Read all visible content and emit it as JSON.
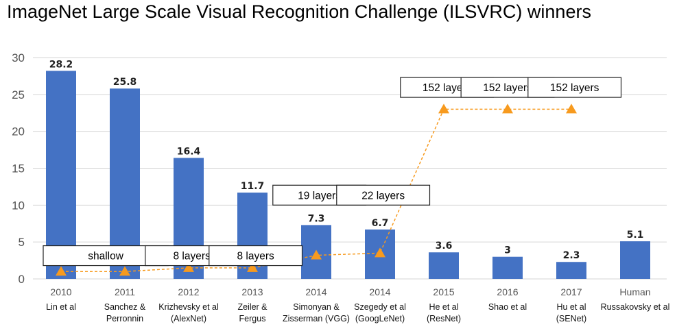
{
  "chart_data": {
    "type": "bar",
    "title": "ImageNet Large Scale Visual Recognition Challenge (ILSVRC) winners",
    "ylim": [
      0,
      30
    ],
    "yticks": [
      0,
      5,
      10,
      15,
      20,
      25,
      30
    ],
    "grid": true,
    "categories": [
      "2010",
      "2011",
      "2012",
      "2013",
      "2014",
      "2014",
      "2015",
      "2016",
      "2017",
      "Human"
    ],
    "authors": [
      [
        "Lin et al"
      ],
      [
        "Sanchez &",
        "Perronnin"
      ],
      [
        "Krizhevsky et al",
        "(AlexNet)"
      ],
      [
        "Zeiler &",
        "Fergus"
      ],
      [
        "Simonyan &",
        "Zisserman (VGG)"
      ],
      [
        "Szegedy et al",
        "(GoogLeNet)"
      ],
      [
        "He et al",
        "(ResNet)"
      ],
      [
        "Shao et al"
      ],
      [
        "Hu et al",
        "(SENet)"
      ],
      [
        "Russakovsky et al"
      ]
    ],
    "values": [
      28.2,
      25.8,
      16.4,
      11.7,
      7.3,
      6.7,
      3.6,
      3,
      2.3,
      5.1
    ],
    "value_labels": [
      "28.2",
      "25.8",
      "16.4",
      "11.7",
      "7.3",
      "6.7",
      "3.6",
      "3",
      "2.3",
      "5.1"
    ],
    "bar_color": "#4472c4",
    "depth_series": {
      "values": [
        1,
        1,
        1.5,
        1.5,
        3.2,
        3.5,
        23,
        23,
        23
      ],
      "color": "#f79a1e"
    },
    "annotations": [
      {
        "text": "shallow",
        "index_from": 0,
        "index_to": 1.4,
        "y": 4.5
      },
      {
        "text": "8 layers",
        "index_from": 1.6,
        "index_to": 2.5,
        "y": 4.5
      },
      {
        "text": "8 layers",
        "index_from": 2.6,
        "index_to": 3.5,
        "y": 4.5
      },
      {
        "text": "19 layers",
        "index_from": 3.6,
        "index_to": 4.5,
        "y": 12.7
      },
      {
        "text": "22 layers",
        "index_from": 4.6,
        "index_to": 5.5,
        "y": 12.7
      },
      {
        "text": "152 layers",
        "index_from": 5.6,
        "index_to": 6.5,
        "y": 27.3
      },
      {
        "text": "152 layers",
        "index_from": 6.55,
        "index_to": 7.45,
        "y": 27.3
      },
      {
        "text": "152 layers",
        "index_from": 7.6,
        "index_to": 8.5,
        "y": 27.3
      }
    ]
  }
}
